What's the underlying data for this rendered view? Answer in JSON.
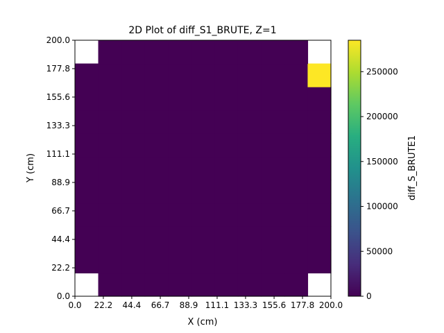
{
  "chart_data": {
    "type": "heatmap",
    "title": "2D Plot of diff_S1_BRUTE, Z=1",
    "xlabel": "X (cm)",
    "ylabel": "Y (cm)",
    "xlim": [
      0,
      200
    ],
    "ylim": [
      0,
      200
    ],
    "x_ticks": [
      "0.0",
      "22.2",
      "44.4",
      "66.7",
      "88.9",
      "111.1",
      "133.3",
      "155.6",
      "177.8",
      "200.0"
    ],
    "y_ticks": [
      "0.0",
      "22.2",
      "44.4",
      "66.7",
      "88.9",
      "111.1",
      "133.3",
      "155.6",
      "177.8",
      "200.0"
    ],
    "x_tick_values": [
      0,
      22.2,
      44.4,
      66.7,
      88.9,
      111.1,
      133.3,
      155.6,
      177.8,
      200.0
    ],
    "y_tick_values": [
      0,
      22.2,
      44.4,
      66.7,
      88.9,
      111.1,
      133.3,
      155.6,
      177.8,
      200.0
    ],
    "grid": {
      "rows": 11,
      "cols": 11
    },
    "cells": [
      {
        "row": 9,
        "col": 10,
        "value": 285000
      }
    ],
    "default_value": 0,
    "missing_cells": [
      {
        "row": 10,
        "col": 0
      },
      {
        "row": 10,
        "col": 10
      },
      {
        "row": 0,
        "col": 0
      },
      {
        "row": 0,
        "col": 10
      }
    ],
    "colormap": "viridis",
    "colorbar": {
      "label": "diff_S_BRUTE1",
      "min": 0,
      "max": 285000,
      "ticks": [
        "0",
        "50000",
        "100000",
        "150000",
        "200000",
        "250000"
      ],
      "tick_values": [
        0,
        50000,
        100000,
        150000,
        200000,
        250000
      ]
    },
    "legend": "none",
    "grid_lines": false
  }
}
